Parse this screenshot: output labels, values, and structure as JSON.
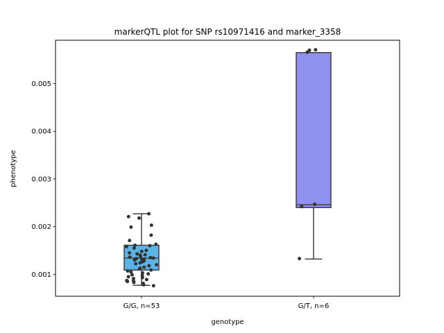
{
  "chart_data": {
    "type": "box",
    "title": "markerQTL plot for SNP rs10971416 and marker_3358",
    "xlabel": "genotype",
    "ylabel": "phenotype",
    "ylim": [
      0.00054,
      0.00591
    ],
    "yticks": [
      0.001,
      0.002,
      0.003,
      0.004,
      0.005
    ],
    "ytick_labels": [
      "0.001",
      "0.002",
      "0.003",
      "0.004",
      "0.005"
    ],
    "grid": false,
    "categories": [
      "G/G, n=53",
      "G/T, n=6"
    ],
    "boxes": [
      {
        "category": "G/G, n=53",
        "color": "#5ab4e5",
        "whisker_low": 0.00077,
        "q1": 0.00109,
        "median": 0.00134,
        "q3": 0.00161,
        "whisker_high": 0.00227,
        "points": [
          0.00227,
          0.00221,
          0.00218,
          0.00203,
          0.00199,
          0.00182,
          0.00171,
          0.00163,
          0.00161,
          0.0016,
          0.00158,
          0.00155,
          0.0015,
          0.00148,
          0.00145,
          0.00143,
          0.00141,
          0.0014,
          0.00138,
          0.00136,
          0.00135,
          0.00134,
          0.00133,
          0.00132,
          0.00131,
          0.0013,
          0.00128,
          0.00126,
          0.00124,
          0.00122,
          0.0012,
          0.00118,
          0.00115,
          0.00113,
          0.00111,
          0.00109,
          0.00107,
          0.00105,
          0.00103,
          0.00101,
          0.00099,
          0.00097,
          0.00095,
          0.00093,
          0.00091,
          0.00089,
          0.00087,
          0.00086,
          0.00085,
          0.00083,
          0.00081,
          0.00078,
          0.00076
        ]
      },
      {
        "category": "G/T, n=6",
        "color": "#9090f0",
        "whisker_low": 0.00132,
        "q1": 0.0024,
        "median": 0.00246,
        "q3": 0.00565,
        "whisker_high": 0.00565,
        "points": [
          0.00571,
          0.0057,
          0.00566,
          0.00247,
          0.00242,
          0.00133
        ]
      }
    ]
  }
}
